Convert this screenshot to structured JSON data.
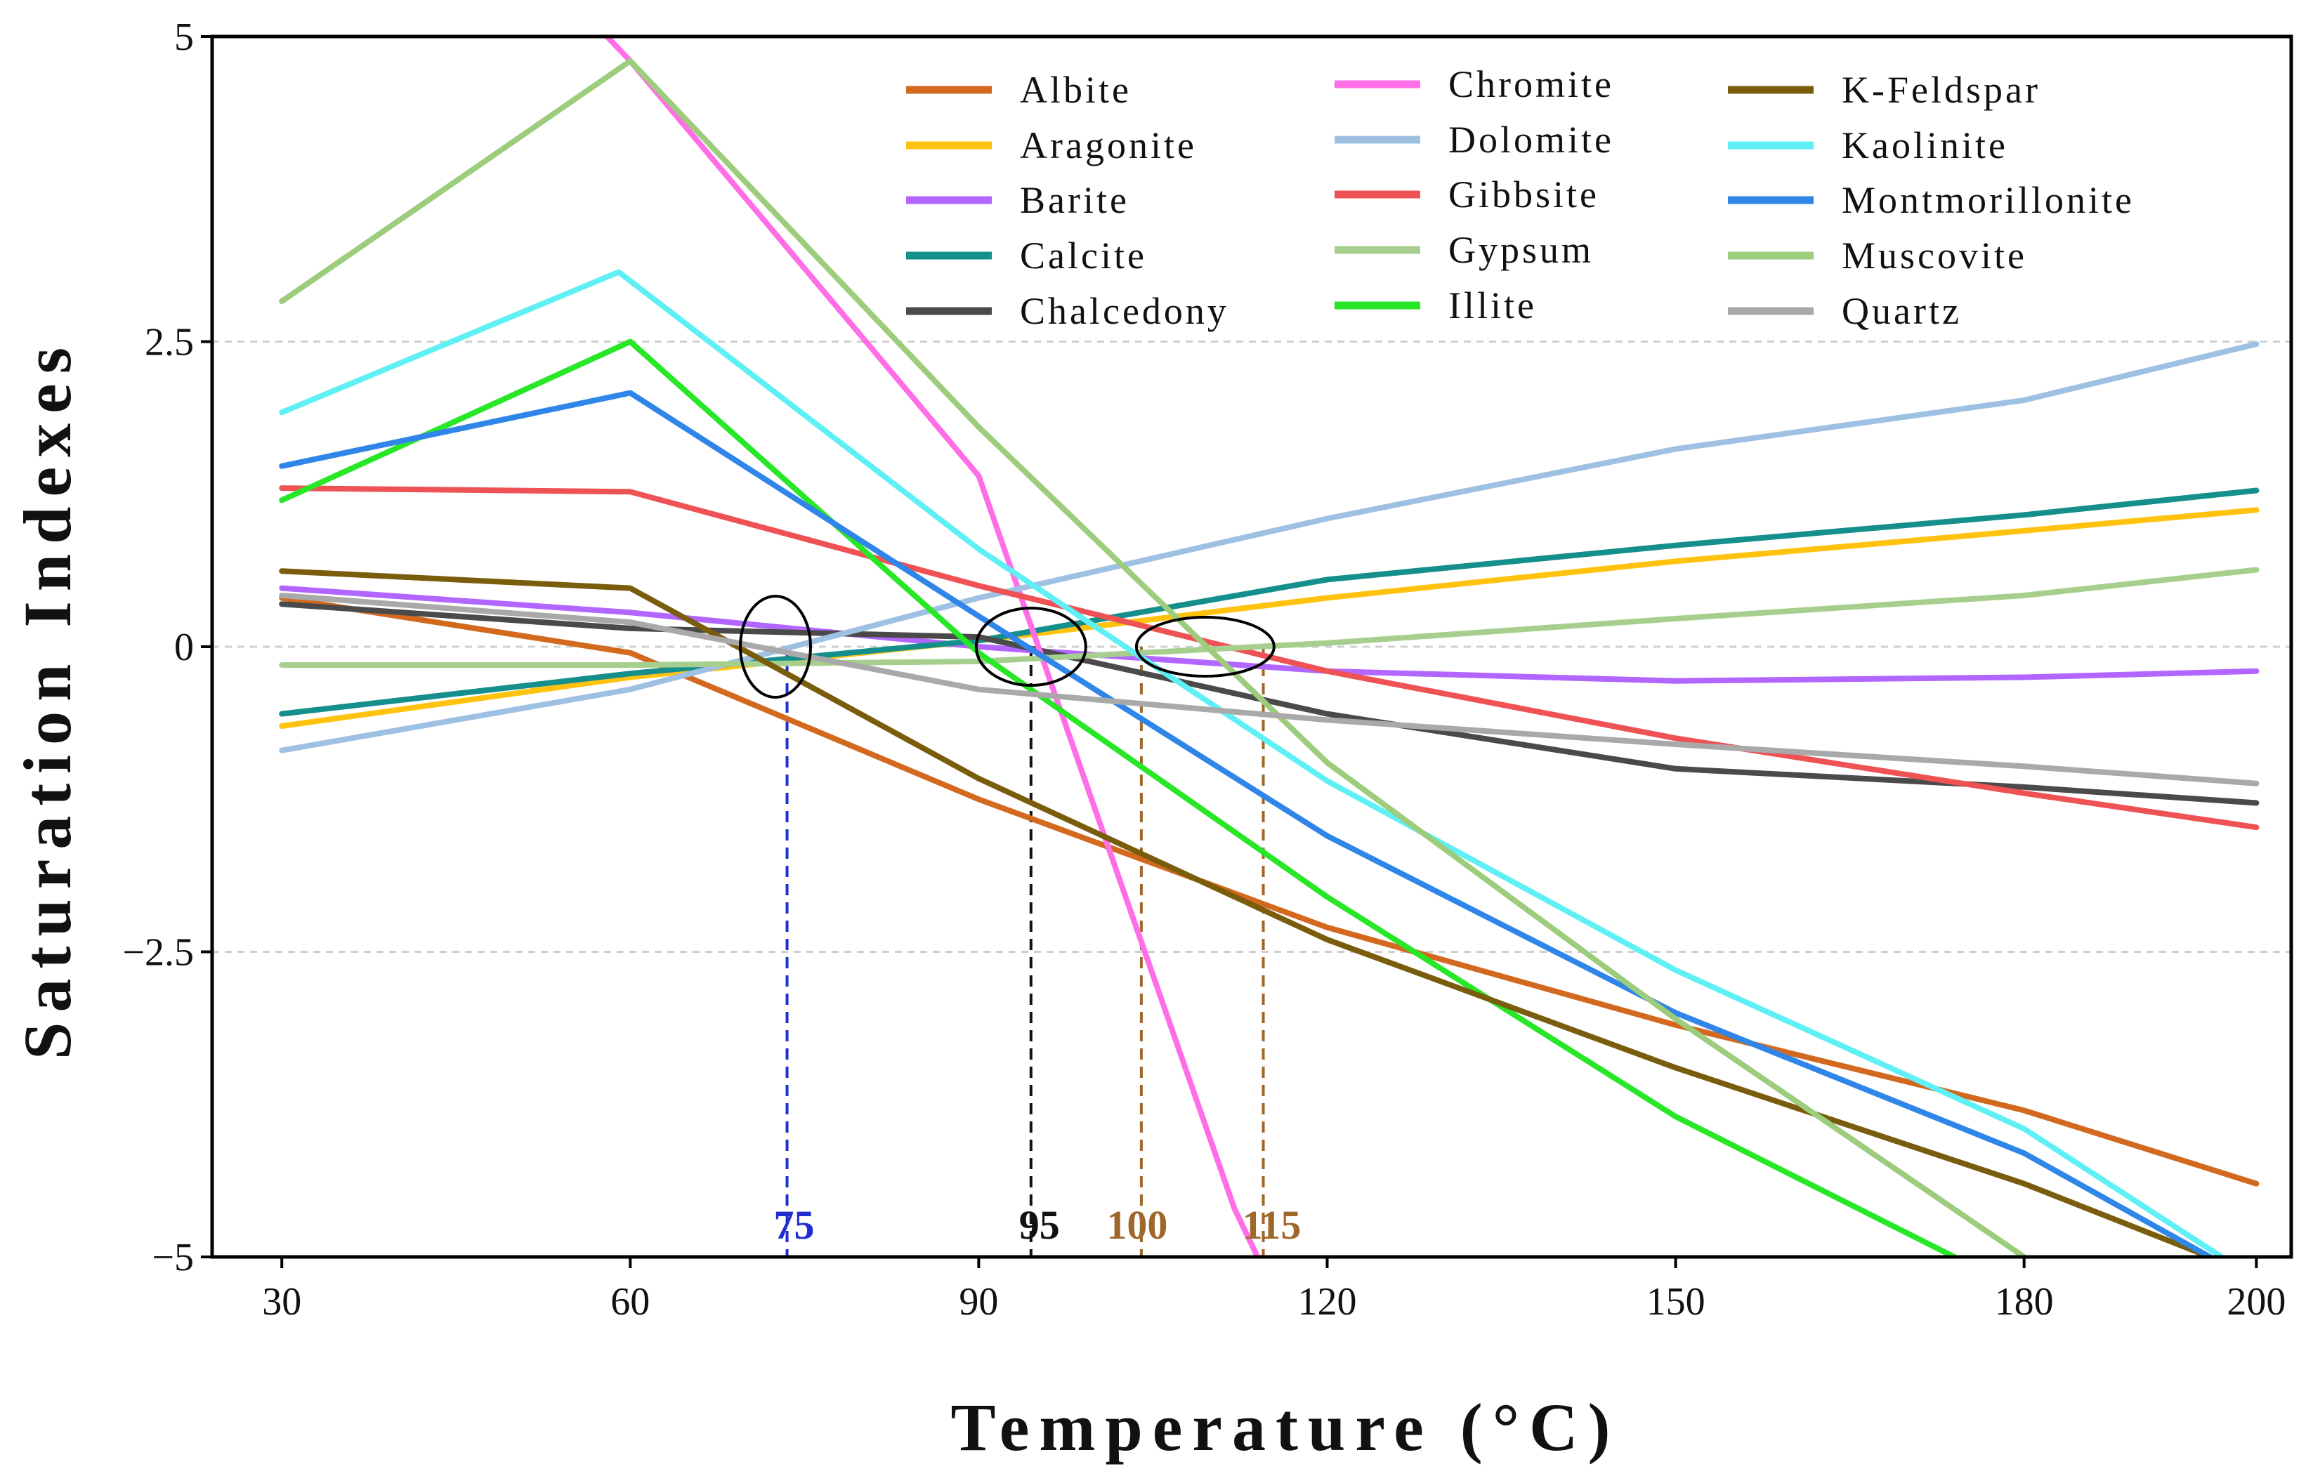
{
  "chart_data": {
    "type": "line",
    "xlabel": "Temperature (°C)",
    "ylabel": "Saturation Indexes",
    "xlim": [
      24,
      203
    ],
    "ylim": [
      -5,
      5
    ],
    "x_ticks": [
      30,
      60,
      90,
      120,
      150,
      180,
      200
    ],
    "y_ticks": [
      {
        "value": 5,
        "label": "5"
      },
      {
        "value": 2.5,
        "label": "2.5"
      },
      {
        "value": 0,
        "label": "0"
      },
      {
        "value": -2.5,
        "label": "−2.5"
      },
      {
        "value": -5,
        "label": "−5"
      }
    ],
    "gridlines_y": [
      2.5,
      0,
      -2.5
    ],
    "legend_position": "top-right",
    "series": [
      {
        "name": "Albite",
        "color": "#D2691E",
        "points": [
          [
            30,
            0.4
          ],
          [
            60,
            -0.05
          ],
          [
            90,
            -1.25
          ],
          [
            120,
            -2.3
          ],
          [
            150,
            -3.1
          ],
          [
            180,
            -3.8
          ],
          [
            200,
            -4.4
          ]
        ]
      },
      {
        "name": "Aragonite",
        "color": "#FFC20E",
        "points": [
          [
            30,
            -0.65
          ],
          [
            60,
            -0.25
          ],
          [
            90,
            0.05
          ],
          [
            120,
            0.4
          ],
          [
            150,
            0.7
          ],
          [
            180,
            0.95
          ],
          [
            200,
            1.12
          ]
        ]
      },
      {
        "name": "Barite",
        "color": "#B266FF",
        "points": [
          [
            30,
            0.48
          ],
          [
            60,
            0.28
          ],
          [
            90,
            0
          ],
          [
            120,
            -0.2
          ],
          [
            150,
            -0.28
          ],
          [
            180,
            -0.25
          ],
          [
            200,
            -0.2
          ]
        ]
      },
      {
        "name": "Calcite",
        "color": "#148F8B",
        "points": [
          [
            30,
            -0.55
          ],
          [
            60,
            -0.22
          ],
          [
            90,
            0.05
          ],
          [
            120,
            0.55
          ],
          [
            150,
            0.83
          ],
          [
            180,
            1.08
          ],
          [
            200,
            1.28
          ]
        ]
      },
      {
        "name": "Chalcedony",
        "color": "#4A4A4A",
        "points": [
          [
            30,
            0.35
          ],
          [
            60,
            0.15
          ],
          [
            90,
            0.08
          ],
          [
            120,
            -0.55
          ],
          [
            150,
            -1
          ],
          [
            180,
            -1.15
          ],
          [
            200,
            -1.28
          ]
        ]
      },
      {
        "name": "Chromite",
        "color": "#FF6EE6",
        "points": [
          [
            58,
            5
          ],
          [
            60,
            4.8
          ],
          [
            90,
            1.4
          ],
          [
            112,
            -4.6
          ],
          [
            114,
            -5
          ]
        ]
      },
      {
        "name": "Dolomite",
        "color": "#9EC0E3",
        "points": [
          [
            30,
            -0.85
          ],
          [
            60,
            -0.35
          ],
          [
            90,
            0.4
          ],
          [
            120,
            1.05
          ],
          [
            150,
            1.62
          ],
          [
            180,
            2.02
          ],
          [
            200,
            2.48
          ]
        ]
      },
      {
        "name": "Gibbsite",
        "color": "#EF5254",
        "points": [
          [
            30,
            1.3
          ],
          [
            60,
            1.27
          ],
          [
            90,
            0.5
          ],
          [
            120,
            -0.2
          ],
          [
            150,
            -0.75
          ],
          [
            180,
            -1.2
          ],
          [
            200,
            -1.48
          ]
        ]
      },
      {
        "name": "Gypsum",
        "color": "#A6CF8E",
        "points": [
          [
            30,
            -0.15
          ],
          [
            60,
            -0.15
          ],
          [
            90,
            -0.12
          ],
          [
            120,
            0.03
          ],
          [
            150,
            0.23
          ],
          [
            180,
            0.42
          ],
          [
            200,
            0.63
          ]
        ]
      },
      {
        "name": "Illite",
        "color": "#27E727",
        "points": [
          [
            30,
            1.2
          ],
          [
            60,
            2.5
          ],
          [
            90,
            -0.05
          ],
          [
            120,
            -2.05
          ],
          [
            150,
            -3.85
          ],
          [
            174,
            -5
          ]
        ]
      },
      {
        "name": "K-Feldspar",
        "color": "#7A5C0D",
        "points": [
          [
            30,
            0.62
          ],
          [
            60,
            0.48
          ],
          [
            90,
            -1.08
          ],
          [
            120,
            -2.4
          ],
          [
            150,
            -3.45
          ],
          [
            180,
            -4.4
          ],
          [
            196,
            -5
          ]
        ]
      },
      {
        "name": "Kaolinite",
        "color": "#5FF0F5",
        "points": [
          [
            30,
            1.92
          ],
          [
            59,
            3.07
          ],
          [
            90,
            0.8
          ],
          [
            120,
            -1.1
          ],
          [
            150,
            -2.65
          ],
          [
            180,
            -3.95
          ],
          [
            197,
            -5
          ]
        ]
      },
      {
        "name": "Montmorillonite",
        "color": "#2F86E8",
        "points": [
          [
            30,
            1.48
          ],
          [
            60,
            2.08
          ],
          [
            90,
            0.25
          ],
          [
            120,
            -1.55
          ],
          [
            150,
            -3
          ],
          [
            180,
            -4.15
          ],
          [
            196,
            -5
          ]
        ]
      },
      {
        "name": "Muscovite",
        "color": "#9CCC7C",
        "points": [
          [
            30,
            2.83
          ],
          [
            60,
            4.8
          ],
          [
            90,
            1.8
          ],
          [
            120,
            -0.95
          ],
          [
            150,
            -3.05
          ],
          [
            180,
            -5
          ]
        ]
      },
      {
        "name": "Quartz",
        "color": "#A9A9A9",
        "points": [
          [
            30,
            0.42
          ],
          [
            60,
            0.2
          ],
          [
            90,
            -0.35
          ],
          [
            120,
            -0.6
          ],
          [
            150,
            -0.8
          ],
          [
            180,
            -0.98
          ],
          [
            200,
            -1.12
          ]
        ]
      }
    ],
    "annotations": [
      {
        "label": "75",
        "x": 73.5,
        "color": "#1F2FCF",
        "ellipse_x": 72.5
      },
      {
        "label": "95",
        "x": 94.5,
        "color": "#111111",
        "ellipse_x": 94.5
      },
      {
        "label": "100",
        "x": 104,
        "color": "#A0672A",
        "ellipse_x": null
      },
      {
        "label": "115",
        "x": 114.5,
        "color": "#A0672A",
        "ellipse_x": 109.5
      }
    ]
  }
}
